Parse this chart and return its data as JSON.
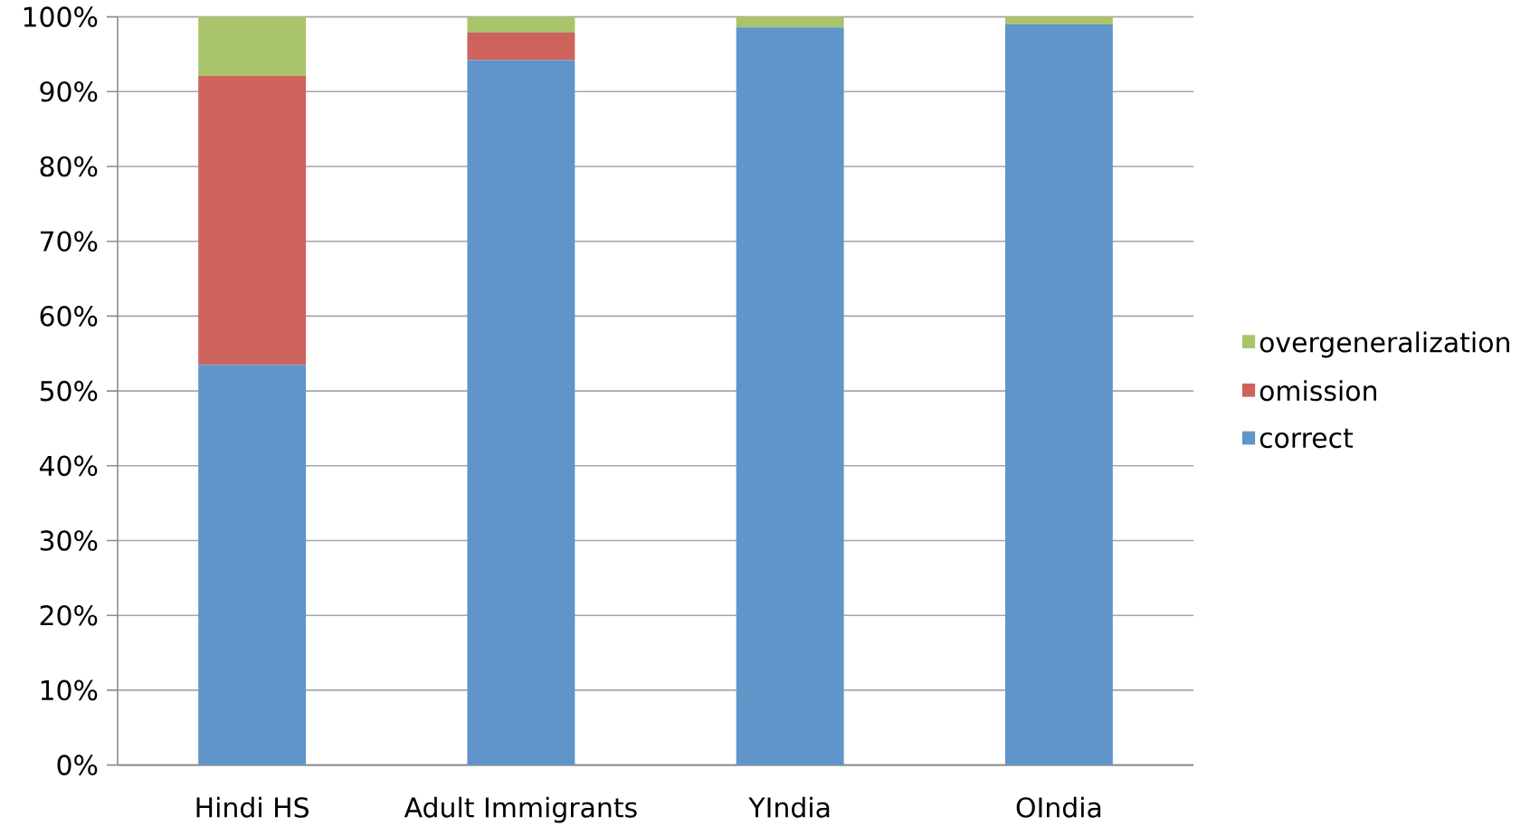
{
  "chart_data": {
    "type": "bar",
    "stacked": true,
    "categories": [
      "Hindi HS",
      "Adult Immigrants",
      "YIndia",
      "OIndia"
    ],
    "series": [
      {
        "name": "correct",
        "color": "#5f95c9",
        "values": [
          53.5,
          94.2,
          98.6,
          99.0
        ]
      },
      {
        "name": "omission",
        "color": "#cd635c",
        "values": [
          38.6,
          3.7,
          0,
          0
        ]
      },
      {
        "name": "overgeneralization",
        "color": "#a9c46a",
        "values": [
          7.9,
          2.1,
          1.4,
          1.0
        ]
      }
    ],
    "ylim": [
      0,
      100
    ],
    "yticks": [
      {
        "value": 0,
        "label": "0%"
      },
      {
        "value": 10,
        "label": "10%"
      },
      {
        "value": 20,
        "label": "20%"
      },
      {
        "value": 30,
        "label": "30%"
      },
      {
        "value": 40,
        "label": "40%"
      },
      {
        "value": 50,
        "label": "50%"
      },
      {
        "value": 60,
        "label": "60%"
      },
      {
        "value": 70,
        "label": "70%"
      },
      {
        "value": 80,
        "label": "80%"
      },
      {
        "value": 90,
        "label": "90%"
      },
      {
        "value": 100,
        "label": "100%"
      }
    ],
    "grid": "y",
    "legend": "right"
  }
}
